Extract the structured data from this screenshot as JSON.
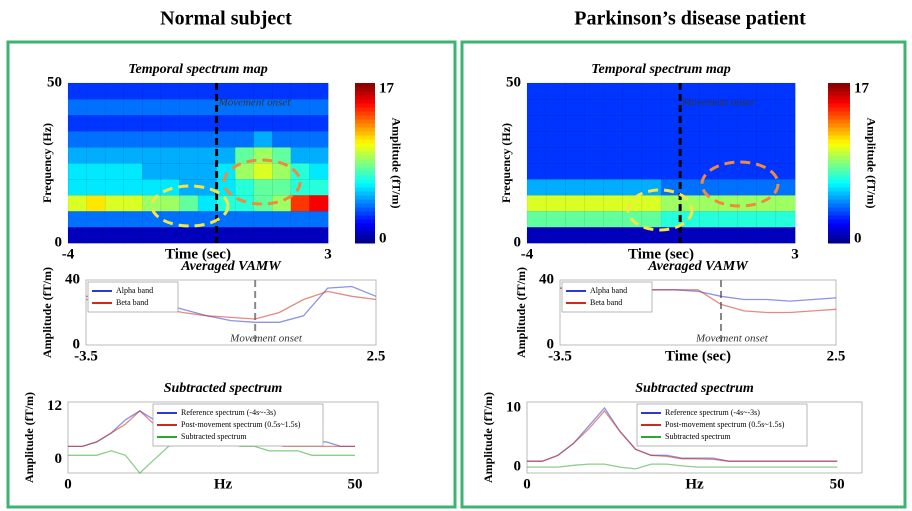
{
  "panels": [
    {
      "title": "Normal subject"
    },
    {
      "title": "Parkinson’s disease patient"
    }
  ],
  "chart_data": [
    {
      "type": "heatmap",
      "title": "Temporal spectrum map",
      "xlabel": "Time (sec)",
      "ylabel": "Frequency (Hz)",
      "colorbar_label": "Amplitude (fT/m)",
      "annotation": "Movement onset",
      "onset_x": 0,
      "xlim": [
        -4,
        3
      ],
      "xticks": [
        -4,
        3
      ],
      "ylim": [
        0,
        50
      ],
      "yticks": [
        0,
        50
      ],
      "clim": [
        0,
        17
      ],
      "colorbar_ticks": [
        0,
        17
      ],
      "values": [
        [
          1,
          1,
          1,
          1,
          1,
          1,
          1,
          1,
          1,
          1,
          1,
          1,
          1,
          1
        ],
        [
          4,
          4,
          4,
          4,
          4,
          4,
          4,
          4,
          4,
          4,
          4,
          4,
          4,
          4
        ],
        [
          10,
          11,
          10,
          10,
          9,
          9,
          8,
          6,
          7,
          7,
          8,
          9,
          14,
          15
        ],
        [
          6,
          6,
          6,
          6,
          6,
          6,
          5,
          5,
          6,
          7,
          8,
          8,
          7,
          7
        ],
        [
          6,
          6,
          6,
          6,
          5,
          5,
          5,
          5,
          6,
          9,
          10,
          9,
          7,
          6
        ],
        [
          5,
          5,
          5,
          5,
          5,
          5,
          5,
          5,
          5,
          8,
          9,
          8,
          5,
          5
        ],
        [
          4,
          4,
          4,
          4,
          4,
          4,
          4,
          4,
          4,
          4,
          5,
          4,
          4,
          4
        ],
        [
          3,
          3,
          3,
          3,
          3,
          3,
          3,
          3,
          3,
          3,
          3,
          3,
          3,
          3
        ],
        [
          4,
          4,
          4,
          4,
          4,
          4,
          4,
          4,
          4,
          4,
          4,
          4,
          4,
          4
        ],
        [
          3,
          3,
          3,
          3,
          3,
          3,
          3,
          3,
          3,
          3,
          3,
          3,
          3,
          3
        ]
      ]
    },
    {
      "type": "line",
      "title": "Averaged VAMW",
      "ylabel": "Amplitude (fT/m)",
      "annotation": "Movement onset",
      "onset_x": 0,
      "legend": "upper left",
      "xlim": [
        -3.5,
        2.5
      ],
      "xticks": [
        -3.5,
        2.5
      ],
      "ylim": [
        0,
        40
      ],
      "yticks": [
        0,
        40
      ],
      "x": [
        -3.5,
        -3,
        -2.5,
        -2,
        -1.5,
        -1,
        -0.5,
        0,
        0.5,
        1,
        1.5,
        2,
        2.5
      ],
      "series": [
        {
          "name": "Alpha band",
          "color": "#2b3bd1",
          "values": [
            30,
            29,
            28,
            26,
            22,
            18,
            15,
            14,
            14,
            18,
            35,
            36,
            30
          ]
        },
        {
          "name": "Beta band",
          "color": "#d02a1c",
          "values": [
            28,
            27,
            25,
            23,
            20,
            18,
            17,
            16,
            20,
            28,
            33,
            30,
            28
          ]
        }
      ]
    },
    {
      "type": "line",
      "title": "Subtracted spectrum",
      "xlabel": "Hz",
      "ylabel": "Amplitude (fT/m)",
      "legend": "upper right",
      "xlim": [
        0,
        54
      ],
      "xticks": [
        0,
        50
      ],
      "ylim": [
        -3,
        13
      ],
      "yticks": [
        0,
        12
      ],
      "x": [
        0,
        2.5,
        5,
        7.5,
        10,
        12.5,
        15,
        17.5,
        20,
        22.5,
        25,
        27.5,
        30,
        32.5,
        35,
        37.5,
        40,
        42.5,
        45,
        47.5,
        50
      ],
      "series": [
        {
          "name": "Reference spectrum (-4s~-3s)",
          "color": "#2b3bd1",
          "values": [
            3,
            3,
            4,
            6,
            9,
            11,
            9,
            7,
            9,
            10,
            8,
            7,
            6,
            6,
            5,
            5,
            4,
            4,
            4,
            3,
            3
          ]
        },
        {
          "name": "Post-movement spectrum (0.5s~1.5s)",
          "color": "#d02a1c",
          "values": [
            3,
            3,
            4,
            6,
            8,
            11,
            8,
            5,
            6,
            7,
            6,
            5,
            4,
            4,
            4,
            3,
            3,
            3,
            3,
            3,
            3
          ]
        },
        {
          "name": "Subtracted spectrum",
          "color": "#2ca82c",
          "values": [
            1,
            1,
            1,
            2,
            1,
            -3,
            0,
            3,
            5,
            6,
            5,
            4,
            3,
            3,
            2,
            2,
            2,
            1,
            1,
            1,
            1
          ]
        }
      ]
    },
    {
      "type": "heatmap",
      "title": "Temporal spectrum map",
      "xlabel": "Time (sec)",
      "ylabel": "Frequency (Hz)",
      "colorbar_label": "Amplitude (fT/m)",
      "annotation": "Movement onset",
      "onset_x": 0,
      "xlim": [
        -4,
        3
      ],
      "xticks": [
        -4,
        3
      ],
      "ylim": [
        0,
        50
      ],
      "yticks": [
        0,
        50
      ],
      "clim": [
        0,
        17
      ],
      "colorbar_ticks": [
        0,
        17
      ],
      "values": [
        [
          1,
          1,
          1,
          1,
          1,
          1,
          1,
          1,
          1,
          1,
          1,
          1,
          1,
          1
        ],
        [
          8,
          8,
          8,
          8,
          8,
          8,
          8,
          7,
          7,
          7,
          7,
          7,
          7,
          7
        ],
        [
          10,
          10,
          10,
          10,
          10,
          10,
          10,
          9,
          9,
          9,
          9,
          9,
          9,
          9
        ],
        [
          5,
          5,
          5,
          5,
          5,
          5,
          5,
          4,
          4,
          4,
          4,
          4,
          4,
          4
        ],
        [
          3,
          3,
          3,
          3,
          3,
          3,
          3,
          3,
          3,
          3,
          3,
          3,
          3,
          3
        ],
        [
          3,
          3,
          3,
          3,
          3,
          3,
          3,
          3,
          3,
          3,
          3,
          3,
          3,
          3
        ],
        [
          3,
          3,
          3,
          3,
          3,
          3,
          3,
          3,
          3,
          3,
          3,
          3,
          3,
          3
        ],
        [
          3,
          3,
          3,
          3,
          3,
          3,
          3,
          3,
          3,
          3,
          3,
          3,
          3,
          3
        ],
        [
          3,
          3,
          3,
          3,
          3,
          3,
          3,
          3,
          3,
          3,
          3,
          3,
          3,
          3
        ],
        [
          3,
          3,
          3,
          3,
          3,
          3,
          3,
          3,
          3,
          3,
          3,
          3,
          3,
          3
        ]
      ]
    },
    {
      "type": "line",
      "title": "Averaged VAMW",
      "xlabel": "Time (sec)",
      "ylabel": "Amplitude (fT/m)",
      "annotation": "Movement onset",
      "onset_x": 0,
      "legend": "upper left",
      "xlim": [
        -3.5,
        2.5
      ],
      "xticks": [
        -3.5,
        2.5
      ],
      "ylim": [
        0,
        40
      ],
      "yticks": [
        0,
        40
      ],
      "x": [
        -3.5,
        -3,
        -2.5,
        -2,
        -1.5,
        -1,
        -0.5,
        0,
        0.5,
        1,
        1.5,
        2,
        2.5
      ],
      "series": [
        {
          "name": "Alpha band",
          "color": "#2b3bd1",
          "values": [
            35,
            35,
            34,
            34,
            34,
            34,
            33,
            30,
            28,
            28,
            27,
            28,
            29
          ]
        },
        {
          "name": "Beta band",
          "color": "#d02a1c",
          "values": [
            35,
            35,
            35,
            34,
            34,
            34,
            34,
            25,
            21,
            20,
            20,
            21,
            22
          ]
        }
      ]
    },
    {
      "type": "line",
      "title": "Subtracted spectrum",
      "xlabel": "Hz",
      "ylabel": "Amplitude (fT/m)",
      "legend": "upper right",
      "xlim": [
        0,
        54
      ],
      "xticks": [
        0,
        50
      ],
      "ylim": [
        -1,
        11
      ],
      "yticks": [
        0,
        10
      ],
      "x": [
        0,
        2.5,
        5,
        7.5,
        10,
        12.5,
        15,
        17.5,
        20,
        22.5,
        25,
        27.5,
        30,
        32.5,
        35,
        37.5,
        40,
        42.5,
        45,
        47.5,
        50
      ],
      "series": [
        {
          "name": "Reference spectrum (-4s~-3s)",
          "color": "#2b3bd1",
          "values": [
            1,
            1,
            2,
            4,
            7,
            10,
            6,
            3,
            2,
            2,
            1.5,
            1.5,
            1.5,
            1,
            1,
            1,
            1,
            1,
            1,
            1,
            1
          ]
        },
        {
          "name": "Post-movement spectrum (0.5s~1.5s)",
          "color": "#d02a1c",
          "values": [
            1,
            1,
            2,
            4,
            6.5,
            9.5,
            6,
            3,
            2,
            1.8,
            1.4,
            1.4,
            1.3,
            1,
            1,
            1,
            1,
            1,
            1,
            1,
            1
          ]
        },
        {
          "name": "Subtracted spectrum",
          "color": "#2ca82c",
          "values": [
            0,
            0,
            0,
            0.3,
            0.5,
            0.5,
            0,
            -0.3,
            0.5,
            0.5,
            0.2,
            0,
            0,
            0,
            0,
            0,
            0,
            0,
            0,
            0,
            0
          ]
        }
      ]
    }
  ]
}
